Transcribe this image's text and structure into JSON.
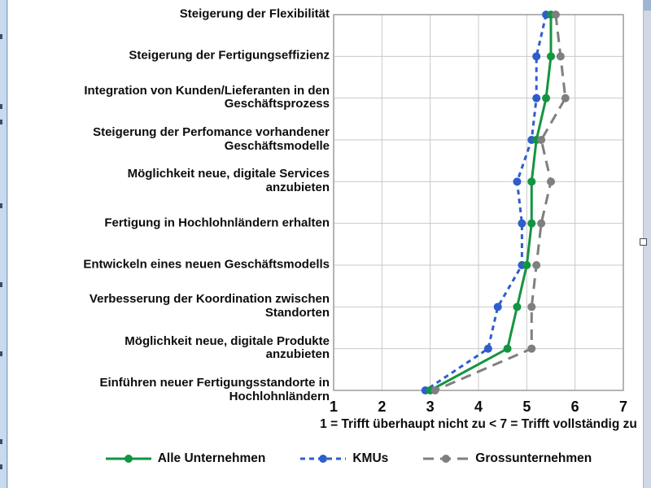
{
  "page": {
    "left_edge_strip_color": "#c9d9ee",
    "right_scrollbar_color": "#cfd8e4",
    "background": "#ffffff"
  },
  "chart_data": {
    "type": "line",
    "orientation": "horizontal-categories",
    "title": "",
    "xlabel": "1 = Trifft überhaupt nicht zu < 7 = Trifft vollständig zu",
    "xlim": [
      1,
      7
    ],
    "xticks": [
      "1",
      "2",
      "3",
      "4",
      "5",
      "6",
      "7"
    ],
    "grid": true,
    "legend_position": "bottom",
    "axis_color": "#9c9c9c",
    "gridline_color": "#c9c9c9",
    "text_color": "#0d0d0d",
    "categories": [
      "Steigerung der Flexibilität",
      "Steigerung der Fertigungseffizienz",
      "Integration von Kunden/Lieferanten in den\nGeschäftsprozess",
      "Steigerung der Perfomance vorhandener\nGeschäftsmodelle",
      "Möglichkeit neue, digitale Services\nanzubieten",
      "Fertigung in Hochlohnländern erhalten",
      "Entwickeln eines neuen Geschäftsmodells",
      "Verbesserung der Koordination zwischen\nStandorten",
      "Möglichkeit neue, digitale Produkte\nanzubieten",
      "Einführen neuer Fertigungsstandorte in\nHochlohnländern"
    ],
    "series": [
      {
        "name": "Alle Unternehmen",
        "color": "#129540",
        "dash": "solid",
        "values": [
          5.5,
          5.5,
          5.4,
          5.2,
          5.1,
          5.1,
          5.0,
          4.8,
          4.6,
          3.0
        ]
      },
      {
        "name": "KMUs",
        "color": "#2d5ecb",
        "dash": "short-dash",
        "values": [
          5.4,
          5.2,
          5.2,
          5.1,
          4.8,
          4.9,
          4.9,
          4.4,
          4.2,
          2.9
        ]
      },
      {
        "name": "Grossunternehmen",
        "color": "#7f7f7f",
        "dash": "long-dash",
        "values": [
          5.6,
          5.7,
          5.8,
          5.3,
          5.5,
          5.3,
          5.2,
          5.1,
          5.1,
          3.1
        ]
      }
    ]
  }
}
